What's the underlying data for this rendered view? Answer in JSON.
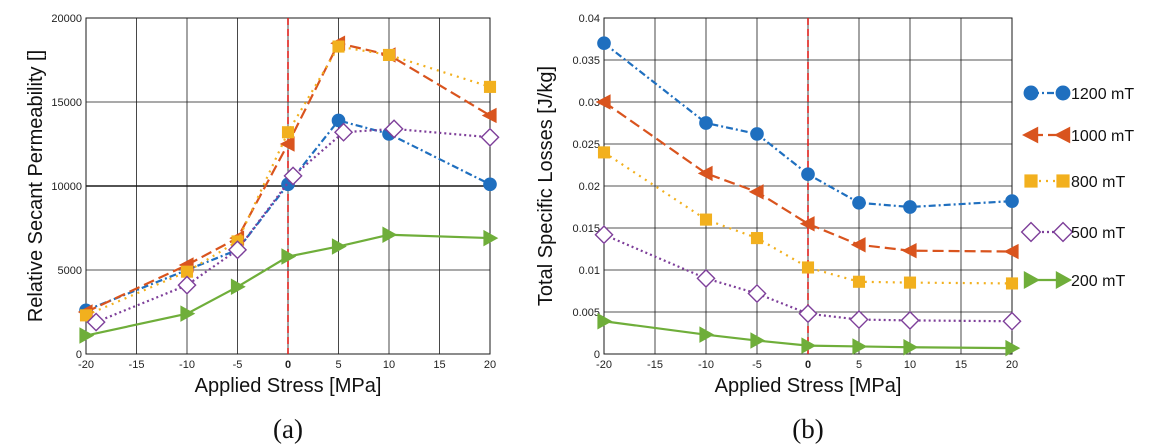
{
  "colors": {
    "s1200": "#1f6fbf",
    "s1000": "#d9541e",
    "s800": "#f2b01e",
    "s500": "#7e3f9a",
    "s200": "#6fae3a",
    "zero_line": "#e0201b"
  },
  "chart_data": [
    {
      "type": "line",
      "panel_label": "(a)",
      "xlabel": "Applied Stress [MPa]",
      "ylabel": "Relative Secant Permeability []",
      "xlim": [
        -20,
        20
      ],
      "ylim": [
        0,
        20000
      ],
      "x_ticks": [
        -20,
        -15,
        -10,
        -5,
        0,
        5,
        10,
        15,
        20
      ],
      "y_ticks": [
        0,
        5000,
        10000,
        15000,
        20000
      ],
      "grid": true,
      "series": [
        {
          "key": "s1200",
          "color": "#1f6fbf",
          "dash": "7,3,2,3",
          "marker": "circle",
          "x": [
            -20,
            -5,
            0,
            5,
            10,
            20
          ],
          "y": [
            2600,
            6200,
            10100,
            13900,
            13100,
            10100
          ]
        },
        {
          "key": "s1000",
          "color": "#d9541e",
          "dash": "11,5",
          "marker": "tri-left",
          "x": [
            -20,
            -10,
            -5,
            0,
            5,
            10,
            20
          ],
          "y": [
            2500,
            5300,
            6900,
            12500,
            18500,
            17800,
            14200
          ]
        },
        {
          "key": "s800",
          "color": "#f2b01e",
          "dash": "2,5",
          "marker": "square",
          "x": [
            -20,
            -10,
            -5,
            0,
            5,
            10,
            20
          ],
          "y": [
            2300,
            4900,
            6700,
            13200,
            18300,
            17800,
            15900
          ]
        },
        {
          "key": "s500",
          "color": "#7e3f9a",
          "dash": "2,3",
          "marker": "diamond-open",
          "x": [
            -19,
            -10,
            -5,
            0.5,
            5.5,
            10.5,
            20
          ],
          "y": [
            1900,
            4100,
            6200,
            10600,
            13200,
            13400,
            12900
          ]
        },
        {
          "key": "s200",
          "color": "#6fae3a",
          "dash": "",
          "marker": "tri-right",
          "x": [
            -20,
            -10,
            -5,
            0,
            5,
            10,
            20
          ],
          "y": [
            1100,
            2400,
            4000,
            5800,
            6400,
            7100,
            6900
          ]
        }
      ]
    },
    {
      "type": "line",
      "panel_label": "(b)",
      "xlabel": "Applied Stress [MPa]",
      "ylabel": "Total Specific Losses [J/kg]",
      "xlim": [
        -20,
        20
      ],
      "ylim": [
        0,
        0.04
      ],
      "x_ticks": [
        -20,
        -15,
        -10,
        -5,
        0,
        5,
        10,
        15,
        20
      ],
      "y_ticks": [
        0,
        0.005,
        0.01,
        0.015,
        0.02,
        0.025,
        0.03,
        0.035,
        0.04
      ],
      "grid": true,
      "legend_placement": "right",
      "series": [
        {
          "key": "s1200",
          "name": "1200 mT",
          "color": "#1f6fbf",
          "dash": "7,3,2,3",
          "marker": "circle",
          "x": [
            -20,
            -10,
            -5,
            0,
            5,
            10,
            20
          ],
          "y": [
            0.037,
            0.0275,
            0.0262,
            0.0214,
            0.018,
            0.0175,
            0.0182
          ]
        },
        {
          "key": "s1000",
          "name": "1000 mT",
          "color": "#d9541e",
          "dash": "11,5",
          "marker": "tri-left",
          "x": [
            -20,
            -10,
            -5,
            0,
            5,
            10,
            20
          ],
          "y": [
            0.03,
            0.0215,
            0.0193,
            0.0155,
            0.013,
            0.0123,
            0.0122
          ]
        },
        {
          "key": "s800",
          "name": "800 mT",
          "color": "#f2b01e",
          "dash": "2,5",
          "marker": "square",
          "x": [
            -20,
            -10,
            -5,
            0,
            5,
            10,
            20
          ],
          "y": [
            0.024,
            0.016,
            0.0138,
            0.0103,
            0.0086,
            0.0085,
            0.0084
          ]
        },
        {
          "key": "s500",
          "name": "500 mT",
          "color": "#7e3f9a",
          "dash": "2,3",
          "marker": "diamond-open",
          "x": [
            -20,
            -10,
            -5,
            0,
            5,
            10,
            20
          ],
          "y": [
            0.0142,
            0.009,
            0.0072,
            0.0048,
            0.0041,
            0.004,
            0.0039
          ]
        },
        {
          "key": "s200",
          "name": "200 mT",
          "color": "#6fae3a",
          "dash": "",
          "marker": "tri-right",
          "x": [
            -20,
            -10,
            -5,
            0,
            5,
            10,
            20
          ],
          "y": [
            0.0039,
            0.0023,
            0.0016,
            0.001,
            0.0009,
            0.0008,
            0.0007
          ]
        }
      ]
    }
  ]
}
